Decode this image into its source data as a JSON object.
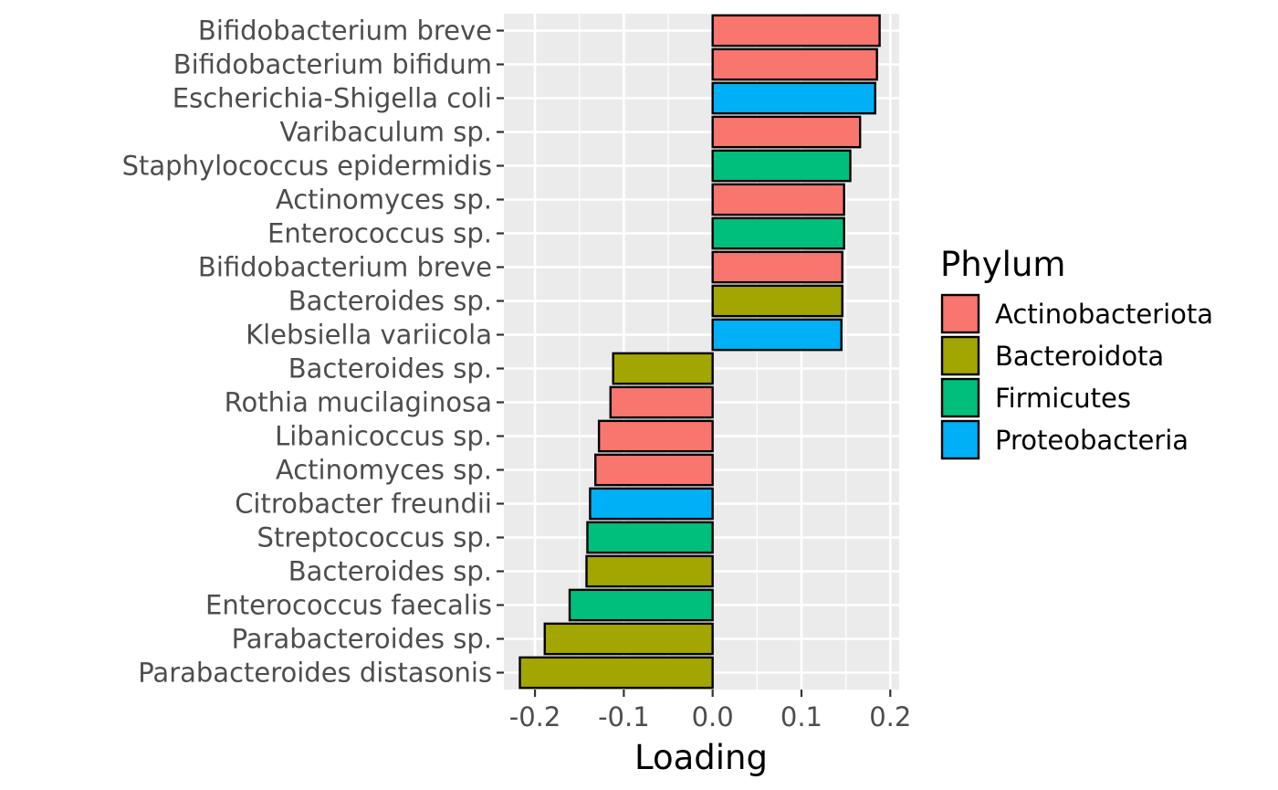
{
  "chart_data": {
    "type": "bar",
    "orientation": "horizontal",
    "xlabel": "Loading",
    "xlim": [
      -0.235,
      0.21
    ],
    "x_ticks": [
      -0.2,
      -0.1,
      0.0,
      0.1,
      0.2
    ],
    "x_tick_labels": [
      "-0.2",
      "-0.1",
      "0.0",
      "0.1",
      "0.2"
    ],
    "grid": true,
    "legend": {
      "title": "Phylum",
      "position": "right",
      "entries": [
        {
          "name": "Actinobacteriota",
          "color": "#F8766D"
        },
        {
          "name": "Bacteroidota",
          "color": "#A3A500"
        },
        {
          "name": "Firmicutes",
          "color": "#00BF7D"
        },
        {
          "name": "Proteobacteria",
          "color": "#00B0F6"
        }
      ]
    },
    "bars": [
      {
        "label": "Bifidobacterium breve",
        "value": 0.188,
        "phylum": "Actinobacteriota"
      },
      {
        "label": "Bifidobacterium bifidum",
        "value": 0.185,
        "phylum": "Actinobacteriota"
      },
      {
        "label": "Escherichia-Shigella coli",
        "value": 0.183,
        "phylum": "Proteobacteria"
      },
      {
        "label": "Varibaculum sp.",
        "value": 0.166,
        "phylum": "Actinobacteriota"
      },
      {
        "label": "Staphylococcus epidermidis",
        "value": 0.155,
        "phylum": "Firmicutes"
      },
      {
        "label": "Actinomyces sp.",
        "value": 0.148,
        "phylum": "Actinobacteriota"
      },
      {
        "label": "Enterococcus sp.",
        "value": 0.148,
        "phylum": "Firmicutes"
      },
      {
        "label": "Bifidobacterium breve",
        "value": 0.146,
        "phylum": "Actinobacteriota"
      },
      {
        "label": "Bacteroides sp.",
        "value": 0.146,
        "phylum": "Bacteroidota"
      },
      {
        "label": "Klebsiella variicola",
        "value": 0.145,
        "phylum": "Proteobacteria"
      },
      {
        "label": "Bacteroides sp.",
        "value": -0.112,
        "phylum": "Bacteroidota"
      },
      {
        "label": "Rothia mucilaginosa",
        "value": -0.115,
        "phylum": "Actinobacteriota"
      },
      {
        "label": "Libanicoccus sp.",
        "value": -0.128,
        "phylum": "Actinobacteriota"
      },
      {
        "label": "Actinomyces sp.",
        "value": -0.132,
        "phylum": "Actinobacteriota"
      },
      {
        "label": "Citrobacter freundii",
        "value": -0.138,
        "phylum": "Proteobacteria"
      },
      {
        "label": "Streptococcus sp.",
        "value": -0.141,
        "phylum": "Firmicutes"
      },
      {
        "label": "Bacteroides sp.",
        "value": -0.142,
        "phylum": "Bacteroidota"
      },
      {
        "label": "Enterococcus faecalis",
        "value": -0.161,
        "phylum": "Firmicutes"
      },
      {
        "label": "Parabacteroides sp.",
        "value": -0.189,
        "phylum": "Bacteroidota"
      },
      {
        "label": "Parabacteroides distasonis",
        "value": -0.217,
        "phylum": "Bacteroidota"
      }
    ]
  }
}
